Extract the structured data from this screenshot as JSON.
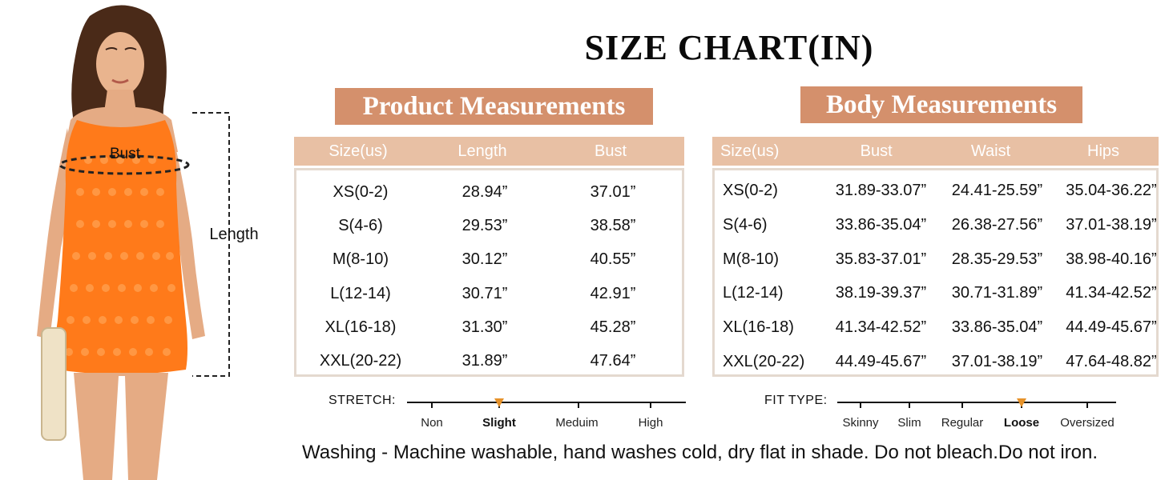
{
  "title": "SIZE CHART(IN)",
  "model_labels": {
    "bust": "Bust",
    "length": "Length"
  },
  "product": {
    "heading": "Product Measurements",
    "columns": [
      "Size(us)",
      "Length",
      "Bust"
    ],
    "rows": [
      [
        "XS(0-2)",
        "28.94”",
        "37.01”"
      ],
      [
        "S(4-6)",
        "29.53”",
        "38.58”"
      ],
      [
        "M(8-10)",
        "30.12”",
        "40.55”"
      ],
      [
        "L(12-14)",
        "30.71”",
        "42.91”"
      ],
      [
        "XL(16-18)",
        "31.30”",
        "45.28”"
      ],
      [
        "XXL(20-22)",
        "31.89”",
        "47.64”"
      ]
    ]
  },
  "body": {
    "heading": "Body Measurements",
    "columns": [
      "Size(us)",
      "Bust",
      "Waist",
      "Hips"
    ],
    "rows": [
      [
        "XS(0-2)",
        "31.89-33.07”",
        "24.41-25.59”",
        "35.04-36.22”"
      ],
      [
        "S(4-6)",
        "33.86-35.04”",
        "26.38-27.56”",
        "37.01-38.19”"
      ],
      [
        "M(8-10)",
        "35.83-37.01”",
        "28.35-29.53”",
        "38.98-40.16”"
      ],
      [
        "L(12-14)",
        "38.19-39.37”",
        "30.71-31.89”",
        "41.34-42.52”"
      ],
      [
        "XL(16-18)",
        "41.34-42.52”",
        "33.86-35.04”",
        "44.49-45.67”"
      ],
      [
        "XXL(20-22)",
        "44.49-45.67”",
        "37.01-38.19”",
        "47.64-48.82”"
      ]
    ]
  },
  "stretch": {
    "label": "STRETCH:",
    "options": [
      "Non",
      "Slight",
      "Meduim",
      "High"
    ],
    "selected": "Slight"
  },
  "fit": {
    "label": "FIT TYPE:",
    "options": [
      "Skinny",
      "Slim",
      "Regular",
      "Loose",
      "Oversized"
    ],
    "selected": "Loose"
  },
  "washing": "Washing - Machine washable, hand washes cold, dry flat in shade. Do not bleach.Do not iron.",
  "colors": {
    "accent": "#d4906c",
    "header": "#e8c0a4",
    "border": "#e4d9cf",
    "dress": "#ff7a1a",
    "marker": "#e6922a"
  }
}
